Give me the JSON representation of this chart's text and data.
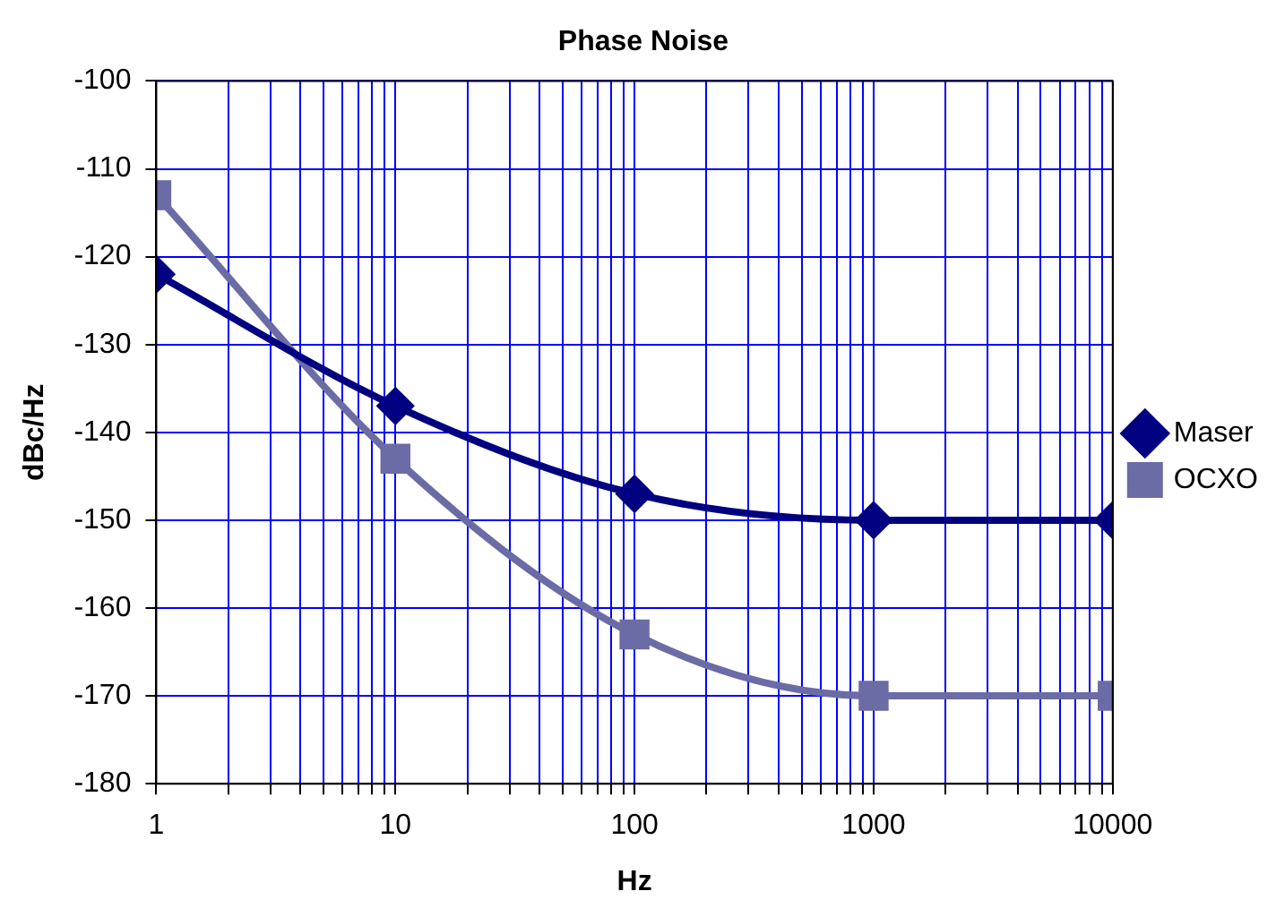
{
  "chart_data": {
    "type": "line",
    "title": "Phase Noise",
    "xlabel": "Hz",
    "ylabel": "dBc/Hz",
    "x": [
      1,
      10,
      100,
      1000,
      10000
    ],
    "series": [
      {
        "name": "Maser",
        "color": "#000080",
        "values": [
          -122,
          -137,
          -147,
          -150,
          -150
        ],
        "marker": "diamond"
      },
      {
        "name": "OCXO",
        "color": "#6b6ba6",
        "values": [
          -113,
          -143,
          -163,
          -170,
          -170
        ],
        "marker": "square"
      }
    ],
    "log": "x",
    "xlim": [
      1,
      10000
    ],
    "xticks": [
      1,
      {
        "value": 2,
        "label": null
      },
      {
        "value": 3,
        "label": null
      },
      {
        "value": 4,
        "label": null
      },
      {
        "value": 5,
        "label": null
      },
      {
        "value": 6,
        "label": null
      },
      {
        "value": 7,
        "label": null
      },
      {
        "value": 8,
        "label": null
      },
      {
        "value": 9,
        "label": null
      },
      10,
      {
        "value": 20,
        "label": null
      },
      {
        "value": 30,
        "label": null
      },
      {
        "value": 40,
        "label": null
      },
      {
        "value": 50,
        "label": null
      },
      {
        "value": 60,
        "label": null
      },
      {
        "value": 70,
        "label": null
      },
      {
        "value": 80,
        "label": null
      },
      {
        "value": 90,
        "label": null
      },
      100,
      {
        "value": 200,
        "label": null
      },
      {
        "value": 300,
        "label": null
      },
      {
        "value": 400,
        "label": null
      },
      {
        "value": 500,
        "label": null
      },
      {
        "value": 600,
        "label": null
      },
      {
        "value": 700,
        "label": null
      },
      {
        "value": 800,
        "label": null
      },
      {
        "value": 900,
        "label": null
      },
      1000,
      {
        "value": 2000,
        "label": null
      },
      {
        "value": 3000,
        "label": null
      },
      {
        "value": 4000,
        "label": null
      },
      {
        "value": 5000,
        "label": null
      },
      {
        "value": 6000,
        "label": null
      },
      {
        "value": 7000,
        "label": null
      },
      {
        "value": 8000,
        "label": null
      },
      {
        "value": 9000,
        "label": null
      },
      10000
    ],
    "ylim": [
      -180,
      -100
    ],
    "yticks": [
      -180,
      -170,
      -160,
      -150,
      -140,
      -130,
      -120,
      -110,
      -100
    ],
    "grid": true,
    "legend": "right",
    "line_style": "solid"
  }
}
